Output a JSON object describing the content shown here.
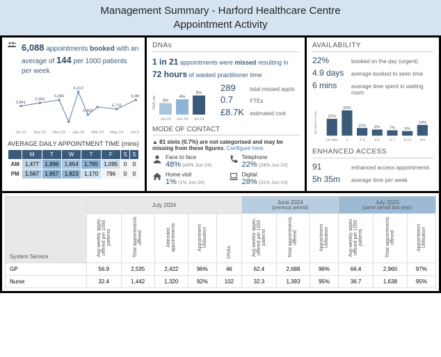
{
  "title": "Management Summary - Harford Healthcare Centre\nAppointment Activity",
  "booked": {
    "count": "6,088",
    "text1": " appointments ",
    "bold1": "booked",
    "text2": " with an average of ",
    "avg": "144",
    "text3": " per 1000 patients per week"
  },
  "line_chart": {
    "type": "line",
    "x_labels": [
      "Jul-23",
      "Sep-23",
      "Nov-23",
      "Jan-24",
      "Mar-24",
      "May-24",
      "Jul-24"
    ],
    "x_positions": [
      0,
      1,
      2,
      3,
      4,
      5,
      6
    ],
    "data_x": [
      0,
      1,
      2,
      2.5,
      3,
      3.5,
      4,
      5,
      6
    ],
    "data_y": [
      5841,
      5966,
      6086,
      5200,
      6413,
      5493,
      5800,
      5716,
      6088
    ],
    "point_labels": [
      "5,841",
      "5,966",
      "6,086",
      "",
      "6,413",
      "5,493",
      "",
      "5,716",
      "6,088"
    ],
    "ylim": [
      5000,
      6600
    ],
    "line_color": "#6a8aaa",
    "marker": "circle",
    "marker_color": "#6a8aaa",
    "label_color": "#555",
    "label_fontsize": 7
  },
  "appt_time": {
    "title": "AVERAGE DAILY APPOINTMENT TIME (mins)",
    "cols": [
      "M",
      "T",
      "W",
      "T",
      "F",
      "S",
      "S"
    ],
    "rows": [
      {
        "label": "AM",
        "vals": [
          "1,477",
          "1,898",
          "1,654",
          "1,765",
          "1,095",
          "0",
          "0"
        ]
      },
      {
        "label": "PM",
        "vals": [
          "1,567",
          "1,957",
          "1,823",
          "1,170",
          "796",
          "0",
          "0"
        ]
      }
    ]
  },
  "dnas": {
    "title": "DNAs",
    "ratio": "1 in 21",
    "t1": " appointments were ",
    "bold": "missed",
    "t2": " resulting in ",
    "hours": "72 hours",
    "t3": " of wasted practitioner time",
    "bars": {
      "type": "bar",
      "x_labels": [
        "Jul-23",
        "Jun-24",
        "Jul-24"
      ],
      "values": [
        3,
        4,
        5
      ],
      "value_labels": [
        "3%",
        "4%",
        "5%"
      ],
      "colors": [
        "#a8c5de",
        "#8fb3d4",
        "#3a5a7a"
      ],
      "ylim": [
        0,
        6
      ],
      "background": "#f4f4f4"
    },
    "stats": [
      {
        "val": "289",
        "label": "total missed appts"
      },
      {
        "val": "0.7",
        "label": "FTEs"
      },
      {
        "val": "£8.7K",
        "label": "estimated cost"
      }
    ]
  },
  "moc": {
    "title": "MODE OF CONTACT",
    "warn_pre": "▲ 81 slots (0.7%) are not categorised and may be missing from these figures. ",
    "warn_link": "Configure here.",
    "items": [
      {
        "icon": "person",
        "label": "Face to face",
        "val": "48%",
        "sub": "(44% Jun-24)"
      },
      {
        "icon": "phone",
        "label": "Telephone",
        "val": "22%",
        "sub": "(24% Jun-24)"
      },
      {
        "icon": "home",
        "label": "Home visit",
        "val": "1%",
        "sub": "(1% Jun-24)"
      },
      {
        "icon": "laptop",
        "label": "Digital",
        "val": "28%",
        "sub": "(31% Jun-24)"
      }
    ]
  },
  "avail": {
    "title": "AVAILABILITY",
    "rows": [
      {
        "val": "22%",
        "label": "booked on the day (urgent)"
      },
      {
        "val": "4.9 days",
        "label": "average booked to seen time"
      },
      {
        "val": "6 mins",
        "label": "average time spent in waiting room"
      }
    ],
    "bars": {
      "type": "bar",
      "x_labels": [
        "On day",
        "1",
        "2-3",
        "4-5",
        "6-7",
        "8-13",
        "14+"
      ],
      "values": [
        22,
        33,
        10,
        8,
        7,
        6,
        14
      ],
      "value_labels": [
        "22%",
        "33%",
        "10%",
        "8%",
        "7%",
        "6%",
        "14%"
      ],
      "color": "#3a5a7a",
      "ylim": [
        0,
        35
      ]
    }
  },
  "enhanced": {
    "title": "ENHANCED ACCESS",
    "rows": [
      {
        "val": "91",
        "label": "enhanced access appointments"
      },
      {
        "val": "5h 35m",
        "label": "average time per week"
      }
    ]
  },
  "big_table": {
    "periods": [
      {
        "label": "July 2024",
        "sub": "",
        "cls": ""
      },
      {
        "label": "June 2024",
        "sub": "(previous period)",
        "cls": "prev"
      },
      {
        "label": "July 2023",
        "sub": "(same period last year)",
        "cls": "last"
      }
    ],
    "cols_july": [
      "Avg weekly appts. offered per 1000 patients",
      "Total appointments offered",
      "Attended appointments",
      "Appointment Utilisation",
      "DNAs"
    ],
    "cols_prev": [
      "Avg weekly appts. offered per 1000 patients",
      "Total appointments offered",
      "Appointment Utilisation"
    ],
    "cols_last": [
      "Avg weekly appts. offered per 1000 patients",
      "Total appointments offered",
      "Appointment Utilisation"
    ],
    "rowhdr": "System Service",
    "rows": [
      {
        "label": "GP",
        "july": [
          "56.9",
          "2,535",
          "2,422",
          "96%",
          "46"
        ],
        "prev": [
          "62.4",
          "2,688",
          "96%"
        ],
        "last": [
          "66.4",
          "2,960",
          "97%"
        ]
      },
      {
        "label": "Nurse",
        "july": [
          "32.4",
          "1,442",
          "1,320",
          "92%",
          "102"
        ],
        "prev": [
          "32.3",
          "1,393",
          "95%"
        ],
        "last": [
          "36.7",
          "1,638",
          "95%"
        ]
      }
    ]
  }
}
